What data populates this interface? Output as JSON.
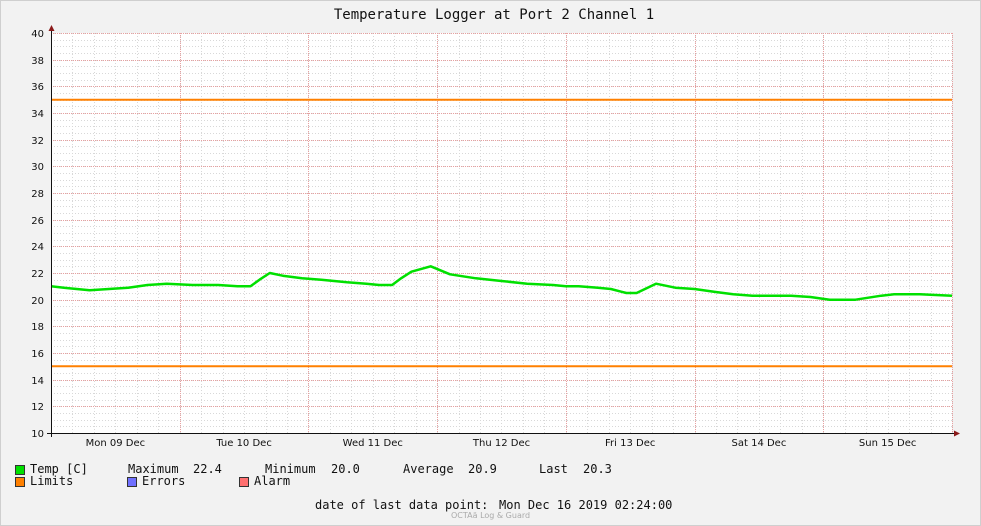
{
  "chart_data": {
    "type": "line",
    "title": "Temperature Logger at Port 2 Channel 1",
    "xlabel": "",
    "ylabel": "",
    "ylim": [
      10,
      40
    ],
    "yticks": [
      10,
      12,
      14,
      16,
      18,
      20,
      22,
      24,
      26,
      28,
      30,
      32,
      34,
      36,
      38,
      40
    ],
    "xlim": [
      0,
      7
    ],
    "xtick_labels": [
      "Mon 09 Dec",
      "Tue 10 Dec",
      "Wed 11 Dec",
      "Thu 12 Dec",
      "Fri 13 Dec",
      "Sat 14 Dec",
      "Sun 15 Dec"
    ],
    "grid": true,
    "series": [
      {
        "name": "Temp [C]",
        "color": "#00e000",
        "x": [
          0,
          0.1,
          0.2,
          0.3,
          0.45,
          0.6,
          0.75,
          0.9,
          1.1,
          1.3,
          1.45,
          1.55,
          1.62,
          1.7,
          1.8,
          1.95,
          2.1,
          2.3,
          2.45,
          2.55,
          2.65,
          2.72,
          2.8,
          2.95,
          3.1,
          3.3,
          3.5,
          3.7,
          3.9,
          4.0,
          4.1,
          4.25,
          4.35,
          4.43,
          4.47,
          4.55,
          4.7,
          4.85,
          5.0,
          5.15,
          5.3,
          5.45,
          5.6,
          5.75,
          5.9,
          6.05,
          6.25,
          6.45,
          6.55,
          6.75,
          7.0
        ],
        "values": [
          21.0,
          20.9,
          20.8,
          20.7,
          20.8,
          20.9,
          21.1,
          21.2,
          21.1,
          21.1,
          21.0,
          21.0,
          21.5,
          22.0,
          21.8,
          21.6,
          21.5,
          21.3,
          21.2,
          21.1,
          21.1,
          21.6,
          22.1,
          22.5,
          21.9,
          21.6,
          21.4,
          21.2,
          21.1,
          21.0,
          21.0,
          20.9,
          20.8,
          20.6,
          20.5,
          20.5,
          21.2,
          20.9,
          20.8,
          20.6,
          20.4,
          20.3,
          20.3,
          20.3,
          20.2,
          20.0,
          20.0,
          20.3,
          20.4,
          20.4,
          20.3
        ]
      },
      {
        "name": "Limits",
        "color": "#ff8000",
        "x": [
          0,
          7
        ],
        "values": [
          35,
          35
        ]
      },
      {
        "name": "Limits",
        "color": "#ff8000",
        "x": [
          0,
          7
        ],
        "values": [
          15,
          15
        ]
      }
    ]
  },
  "legend": {
    "temp_label": "Temp [C]",
    "max_label": "Maximum",
    "max_value": "22.4",
    "min_label": "Minimum",
    "min_value": "20.0",
    "avg_label": "Average",
    "avg_value": "20.9",
    "last_label": "Last",
    "last_value": "20.3",
    "limits_label": "Limits",
    "errors_label": "Errors",
    "alarm_label": "Alarm",
    "temp_color": "#00e000",
    "limits_color": "#ff8000",
    "errors_color": "#7070ff",
    "alarm_color": "#ff7070"
  },
  "footer": {
    "date_label": "date of last data point:",
    "date_value": "Mon Dec 16 2019 02:24:00",
    "watermark": "OCTAä Log & Guard"
  }
}
